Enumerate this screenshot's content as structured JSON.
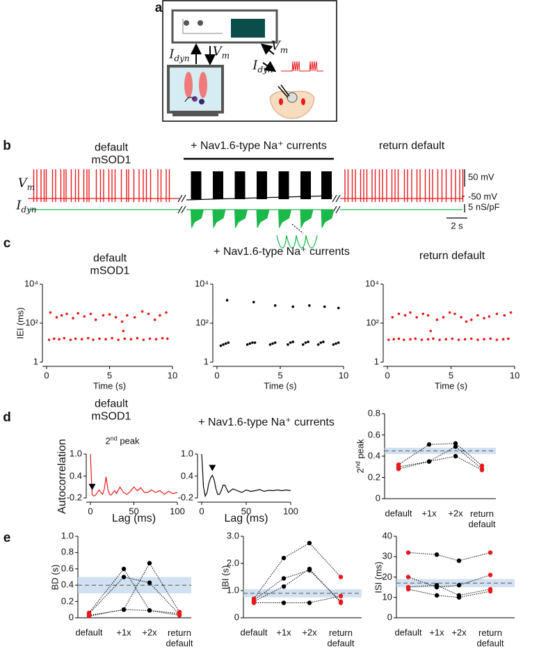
{
  "panel_labels": [
    "a",
    "b",
    "c",
    "d",
    "e"
  ],
  "panel_a": {
    "i_dyn_left": {
      "main": "I",
      "sub": "dyn"
    },
    "v_m_left": {
      "main": "V",
      "sub": "m"
    },
    "v_m_right": {
      "main": "V",
      "sub": "m"
    },
    "i_dyn_right": {
      "main": "I",
      "sub": "dyn"
    }
  },
  "panel_b": {
    "default_label": "default mSOD1",
    "nav_label": "+ Nav1.6-type Na⁺ currents",
    "return_label": "return default",
    "vm_label": {
      "main": "V",
      "sub": "m"
    },
    "idyn_label": {
      "main": "I",
      "sub": "dyn"
    },
    "scale_bars": {
      "voltage": {
        "value": 50,
        "label": "50 mV"
      },
      "resting": {
        "value": -50,
        "label": "-50 mV"
      },
      "conductance": {
        "value": 5,
        "label": "5 nS/pF"
      },
      "time": {
        "value": 2,
        "label": "2 s"
      }
    },
    "default_spike_times": [
      0.3,
      0.6,
      1.0,
      1.3,
      1.5,
      2.1,
      2.4,
      2.9,
      3.2,
      3.4,
      3.9,
      4.3,
      4.6,
      5.1,
      5.4,
      5.6,
      6.3,
      6.7,
      7.0,
      7.5,
      7.8,
      8.1,
      8.7,
      9.2,
      9.4,
      9.9,
      10.4,
      10.8,
      11.1,
      11.5,
      12.2,
      12.5,
      13.0,
      13.3
    ],
    "nav_burst_times": [
      0.3,
      2.4,
      4.5,
      6.6,
      8.7,
      10.8,
      12.8
    ],
    "return_spike_times": [
      0.2,
      0.5,
      0.9,
      1.2,
      1.7,
      2.0,
      2.3,
      2.8,
      3.1,
      3.5,
      3.8,
      4.2,
      4.7,
      5.0,
      5.3,
      5.9,
      6.2,
      6.6,
      7.1,
      7.4,
      7.9,
      8.3,
      8.6,
      9.1,
      9.5,
      9.9,
      10.4,
      10.8,
      11.2,
      11.5
    ]
  },
  "chart_data": [
    {
      "type": "scatter",
      "title": "default mSOD1",
      "x_label": "Time (s)",
      "y_label": "IEI (ms)",
      "log_y": true,
      "xlim": [
        0,
        10
      ],
      "xticks": [
        0,
        5,
        10
      ],
      "ylim": [
        1,
        10000
      ],
      "yticks": [
        1,
        {
          "value": 100,
          "label": "10²"
        },
        {
          "value": 10000,
          "label": "10⁴"
        }
      ],
      "series": [
        {
          "color": "#e8191c",
          "x": [
            0.3,
            0.8,
            1.2,
            1.6,
            2.1,
            2.5,
            3.0,
            3.5,
            3.9,
            4.5,
            5.0,
            5.5,
            6.0,
            6.4,
            7.0,
            7.6,
            8.1,
            8.6,
            9.0,
            9.5,
            6.1,
            0.2,
            0.6,
            1.0,
            1.4,
            1.9,
            2.3,
            2.8,
            3.3,
            3.7,
            4.2,
            4.7,
            5.2,
            5.7,
            6.2,
            6.7,
            7.2,
            7.7,
            8.2,
            8.7,
            9.2,
            9.6
          ],
          "values": [
            350,
            200,
            250,
            300,
            180,
            320,
            220,
            300,
            150,
            250,
            280,
            200,
            120,
            250,
            200,
            400,
            300,
            150,
            250,
            350,
            40,
            14,
            16,
            15,
            17,
            14,
            16,
            15,
            17,
            14,
            16,
            15,
            17,
            14,
            16,
            15,
            17,
            14,
            16,
            15,
            17,
            16
          ]
        }
      ]
    },
    {
      "type": "scatter",
      "title": "+ Nav1.6-type Na⁺ currents",
      "x_label": "Time (s)",
      "log_y": true,
      "xlim": [
        0,
        10
      ],
      "xticks": [
        0,
        5,
        10
      ],
      "ylim": [
        1,
        10000
      ],
      "yticks": [
        1,
        {
          "value": 100,
          "label": "10²"
        },
        {
          "value": 10000,
          "label": "10⁴"
        }
      ],
      "series": [
        {
          "color": "#000000",
          "x": [
            0.8,
            2.9,
            4.6,
            6.0,
            7.3,
            8.5,
            9.6,
            0.3,
            0.5,
            0.7,
            0.9,
            2.4,
            2.6,
            2.8,
            3.0,
            4.2,
            4.4,
            4.6,
            5.6,
            5.8,
            6.0,
            6.8,
            7.0,
            7.2,
            8.0,
            8.2,
            8.4,
            9.2,
            9.4,
            9.6
          ],
          "values": [
            1500,
            1200,
            800,
            700,
            800,
            700,
            600,
            7,
            8,
            9,
            10,
            8,
            9,
            10,
            10,
            8,
            9,
            10,
            8,
            10,
            11,
            8,
            10,
            11,
            8,
            10,
            11,
            8,
            9,
            10
          ]
        }
      ]
    },
    {
      "type": "scatter",
      "title": "return default",
      "x_label": "Time (s)",
      "log_y": true,
      "xlim": [
        0,
        10
      ],
      "xticks": [
        0,
        5,
        10
      ],
      "ylim": [
        1,
        10000
      ],
      "yticks": [
        1,
        {
          "value": 100,
          "label": "10²"
        },
        {
          "value": 10000,
          "label": "10⁴"
        }
      ],
      "series": [
        {
          "color": "#e8191c",
          "x": [
            0.4,
            0.9,
            1.4,
            1.8,
            2.3,
            2.8,
            3.2,
            3.4,
            3.9,
            4.4,
            4.9,
            5.3,
            5.8,
            6.2,
            6.6,
            7.1,
            7.6,
            8.0,
            8.6,
            9.2,
            9.7,
            0.1,
            0.5,
            0.9,
            1.3,
            1.8,
            2.2,
            2.7,
            3.2,
            3.6,
            4.1,
            4.6,
            5.1,
            5.6,
            6.1,
            6.6,
            7.1,
            7.6,
            8.1,
            8.6,
            9.1,
            9.5
          ],
          "values": [
            200,
            300,
            250,
            350,
            200,
            300,
            250,
            40,
            150,
            200,
            350,
            300,
            200,
            120,
            150,
            250,
            180,
            220,
            300,
            250,
            350,
            14,
            15,
            16,
            14,
            15,
            16,
            14,
            15,
            16,
            14,
            15,
            16,
            14,
            15,
            16,
            14,
            15,
            16,
            14,
            15,
            16
          ]
        }
      ]
    },
    {
      "type": "line",
      "title": "default mSOD1",
      "x_label": "Lag (ms)",
      "y_label": "Autocorrelation",
      "annotation": {
        "num": "2",
        "sup": "nd",
        "rest": " peak"
      },
      "xlim": [
        0,
        100
      ],
      "xticks": [
        0,
        50,
        100
      ],
      "ylim": [
        -0.2,
        1.0
      ],
      "yticks": [
        -0.2,
        0.4,
        {
          "value": 1,
          "label": "1.0"
        }
      ],
      "series": [
        {
          "color": "#e8191c",
          "x": [
            0,
            2,
            4,
            6,
            8,
            10,
            12,
            14,
            16,
            18,
            20,
            22,
            24,
            26,
            28,
            30,
            34,
            38,
            42,
            46,
            50,
            54,
            58,
            62,
            66,
            70,
            75,
            80,
            85,
            90,
            95,
            100
          ],
          "values": [
            1.0,
            -0.1,
            -0.15,
            -0.12,
            -0.05,
            0.02,
            -0.05,
            -0.1,
            0.05,
            0.38,
            0.05,
            -0.1,
            -0.12,
            -0.05,
            0.0,
            -0.08,
            0.1,
            -0.05,
            -0.1,
            -0.02,
            0.1,
            0.0,
            0.08,
            -0.05,
            -0.05,
            0.02,
            -0.05,
            0.0,
            -0.1,
            -0.02,
            -0.08,
            -0.05
          ]
        }
      ]
    },
    {
      "type": "line",
      "title": "+ Nav1.6-type Na⁺ currents",
      "x_label": "Lag (ms)",
      "xlim": [
        0,
        100
      ],
      "xticks": [
        0,
        50,
        100
      ],
      "ylim": [
        -0.2,
        1.0
      ],
      "yticks": [
        -0.2,
        0.4,
        {
          "value": 1,
          "label": "1.0"
        }
      ],
      "series": [
        {
          "color": "#000000",
          "x": [
            0,
            2,
            4,
            6,
            8,
            10,
            12,
            14,
            16,
            18,
            20,
            22,
            24,
            26,
            28,
            30,
            35,
            40,
            45,
            50,
            55,
            60,
            65,
            70,
            75,
            80,
            85,
            90,
            95,
            100
          ],
          "values": [
            1.0,
            0.1,
            -0.15,
            -0.05,
            0.2,
            0.35,
            0.42,
            0.3,
            0.05,
            -0.1,
            -0.1,
            0.0,
            0.15,
            0.15,
            0.05,
            -0.05,
            0.05,
            0.0,
            -0.05,
            0.02,
            -0.02,
            0.0,
            0.03,
            -0.02,
            0.01,
            0.0,
            0.02,
            0.0,
            0.02,
            0.0
          ]
        }
      ]
    },
    {
      "type": "dot",
      "y_label": {
        "num": "2",
        "sup": "nd",
        "rest": " peak"
      },
      "categories": [
        "default",
        "+1x",
        "+2x",
        "return default"
      ],
      "point_colors": [
        "#e8191c",
        "#000000",
        "#000000",
        "#e8191c"
      ],
      "band": [
        0.42,
        0.48
      ],
      "reference": 0.45,
      "ylim": [
        0,
        0.8
      ],
      "yticks": [
        0,
        0.2,
        0.4,
        0.6,
        0.8
      ],
      "series": [
        {
          "values": [
            0.32,
            0.51,
            0.52,
            0.31
          ]
        },
        {
          "values": [
            0.3,
            0.35,
            0.49,
            0.28
          ]
        },
        {
          "values": [
            0.28,
            0.35,
            0.4,
            0.27
          ]
        }
      ]
    },
    {
      "type": "dot",
      "y_label": "BD (s)",
      "categories": [
        "default",
        "+1x",
        "+2x",
        "return default"
      ],
      "point_colors": [
        "#e8191c",
        "#000000",
        "#000000",
        "#e8191c"
      ],
      "band": [
        0.3,
        0.5
      ],
      "reference": 0.4,
      "ylim": [
        0,
        1
      ],
      "yticks": [
        0,
        0.2,
        0.4,
        0.6,
        0.8,
        {
          "value": 1,
          "label": "1.0"
        }
      ],
      "series": [
        {
          "values": [
            0.05,
            0.5,
            0.43,
            0.04
          ]
        },
        {
          "values": [
            0.02,
            0.1,
            0.67,
            0.07
          ]
        },
        {
          "values": [
            0.06,
            0.6,
            0.09,
            0.03
          ]
        },
        {
          "values": [
            0.03,
            0.1,
            0.09,
            0.05
          ]
        }
      ]
    },
    {
      "type": "dot",
      "y_label": "IBI (s)",
      "categories": [
        "default",
        "+1x",
        "+2x",
        "return default"
      ],
      "point_colors": [
        "#e8191c",
        "#000000",
        "#000000",
        "#e8191c"
      ],
      "band": [
        0.75,
        1.05
      ],
      "reference": 0.9,
      "ylim": [
        0,
        3
      ],
      "yticks": [
        0,
        {
          "value": 1,
          "label": "1.0"
        },
        {
          "value": 2,
          "label": "2.0"
        },
        {
          "value": 3,
          "label": "3.0"
        }
      ],
      "series": [
        {
          "values": [
            0.7,
            2.2,
            2.75,
            1.5
          ]
        },
        {
          "values": [
            0.65,
            1.45,
            1.75,
            0.6
          ]
        },
        {
          "values": [
            0.6,
            1.15,
            1.8,
            0.55
          ]
        },
        {
          "values": [
            0.55,
            0.55,
            0.55,
            0.8
          ]
        }
      ]
    },
    {
      "type": "dot",
      "y_label": "ISI (ms)",
      "categories": [
        "default",
        "+1x",
        "+2x",
        "return default"
      ],
      "point_colors": [
        "#e8191c",
        "#000000",
        "#000000",
        "#e8191c"
      ],
      "band": [
        15,
        19
      ],
      "reference": 17,
      "ylim": [
        0,
        40
      ],
      "yticks": [
        0,
        10,
        20,
        30,
        40
      ],
      "series": [
        {
          "values": [
            32,
            31,
            28,
            32
          ]
        },
        {
          "values": [
            20,
            15,
            16,
            21
          ]
        },
        {
          "values": [
            15,
            16,
            11,
            14
          ]
        },
        {
          "values": [
            14,
            11,
            10,
            13
          ]
        }
      ]
    }
  ]
}
